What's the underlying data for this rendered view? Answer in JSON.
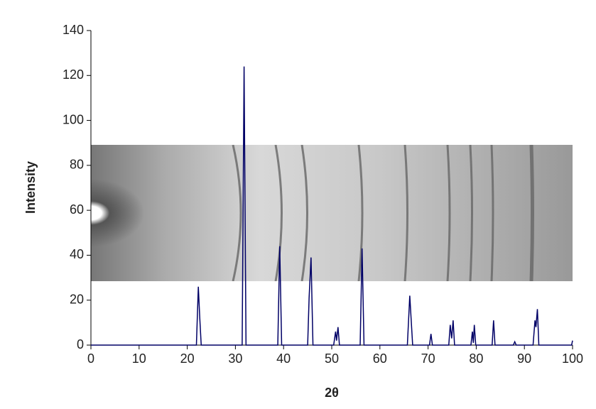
{
  "chart_data": {
    "type": "line",
    "xlabel": "2θ",
    "ylabel": "Intensity",
    "x": [
      0,
      21.9,
      22.3,
      22.6,
      22.9,
      31.4,
      31.8,
      32.2,
      38.8,
      39.2,
      39.6,
      45.0,
      45.3,
      45.7,
      46.1,
      50.4,
      50.8,
      51.0,
      51.3,
      51.6,
      55.9,
      56.3,
      56.7,
      65.7,
      66.2,
      66.8,
      70.3,
      70.6,
      70.9,
      74.3,
      74.6,
      74.9,
      75.2,
      75.5,
      78.9,
      79.2,
      79.4,
      79.6,
      79.9,
      83.3,
      83.6,
      83.9,
      87.7,
      88.0,
      88.3,
      91.8,
      92.2,
      92.4,
      92.7,
      93.0,
      99.8,
      100
    ],
    "values": [
      0,
      0,
      26,
      12,
      0,
      0,
      124,
      0,
      0,
      44,
      0,
      0,
      21,
      39,
      0,
      0,
      6,
      2,
      8,
      0,
      0,
      43,
      0,
      0,
      22,
      0,
      0,
      5,
      0,
      0,
      9,
      3,
      11,
      0,
      0,
      6,
      1,
      9,
      0,
      0,
      11,
      0,
      0,
      1.5,
      0,
      0,
      11,
      8,
      16,
      0,
      0,
      2
    ],
    "color": "#000066",
    "xlim": [
      0,
      100
    ],
    "xticks": [
      0,
      10,
      20,
      30,
      40,
      50,
      60,
      70,
      80,
      90,
      100
    ],
    "ylim": [
      0,
      140
    ],
    "yticks": [
      0,
      20,
      40,
      60,
      80,
      100,
      120,
      140
    ],
    "grid": false
  }
}
